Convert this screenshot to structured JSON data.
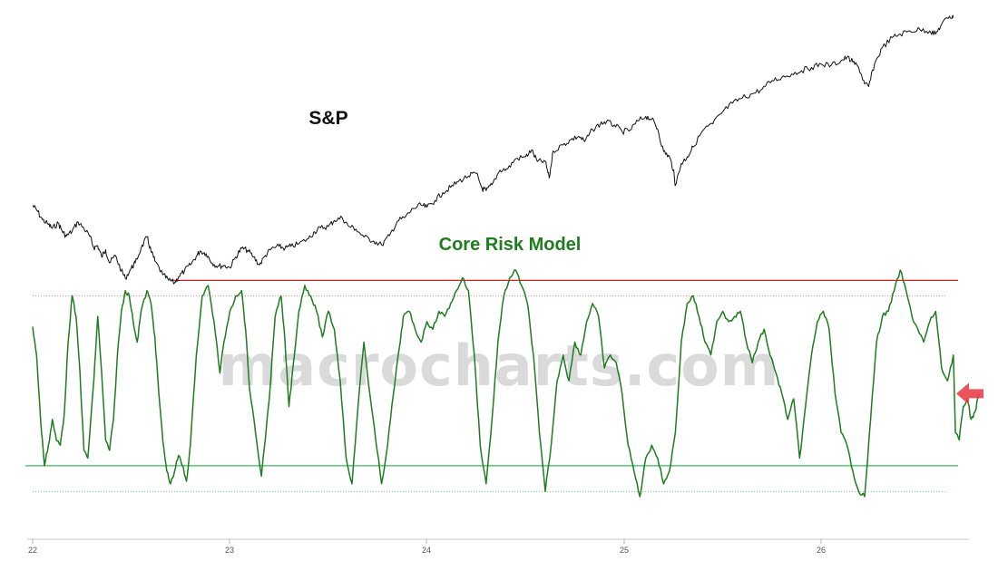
{
  "chart_data": {
    "type": "line",
    "watermark": "macrocharts.com",
    "x_ticks": [
      "22",
      "23",
      "24",
      "25",
      "26"
    ],
    "colors": {
      "sp": "#111111",
      "crm": "#1e7d1e",
      "upper_threshold": "#e02020",
      "upper_threshold_dotted": "#e88a8a",
      "lower_threshold": "#3cb860",
      "lower_threshold_dotted": "#7ccf96",
      "marker": "#e8414a"
    },
    "series": [
      {
        "name": "S&P",
        "key": "sp",
        "points": [
          [
            22.0,
            4766
          ],
          [
            22.02,
            4700
          ],
          [
            22.05,
            4550
          ],
          [
            22.08,
            4480
          ],
          [
            22.1,
            4420
          ],
          [
            22.13,
            4500
          ],
          [
            22.15,
            4380
          ],
          [
            22.17,
            4300
          ],
          [
            22.2,
            4380
          ],
          [
            22.23,
            4520
          ],
          [
            22.26,
            4420
          ],
          [
            22.29,
            4300
          ],
          [
            22.31,
            4130
          ],
          [
            22.33,
            4160
          ],
          [
            22.35,
            3990
          ],
          [
            22.37,
            4100
          ],
          [
            22.39,
            3900
          ],
          [
            22.42,
            4010
          ],
          [
            22.45,
            3780
          ],
          [
            22.47,
            3670
          ],
          [
            22.5,
            3820
          ],
          [
            22.52,
            3900
          ],
          [
            22.55,
            4120
          ],
          [
            22.58,
            4290
          ],
          [
            22.6,
            4080
          ],
          [
            22.62,
            3930
          ],
          [
            22.66,
            3720
          ],
          [
            22.69,
            3640
          ],
          [
            22.72,
            3600
          ],
          [
            22.74,
            3690
          ],
          [
            22.77,
            3780
          ],
          [
            22.8,
            3870
          ],
          [
            22.83,
            4000
          ],
          [
            22.85,
            4080
          ],
          [
            22.88,
            4040
          ],
          [
            22.91,
            3900
          ],
          [
            22.94,
            3850
          ],
          [
            22.97,
            3860
          ],
          [
            23.0,
            3830
          ],
          [
            23.03,
            3990
          ],
          [
            23.06,
            4120
          ],
          [
            23.09,
            4090
          ],
          [
            23.12,
            3990
          ],
          [
            23.15,
            3870
          ],
          [
            23.18,
            4010
          ],
          [
            23.21,
            4110
          ],
          [
            23.25,
            4150
          ],
          [
            23.28,
            4120
          ],
          [
            23.31,
            4150
          ],
          [
            23.35,
            4190
          ],
          [
            23.4,
            4270
          ],
          [
            23.43,
            4370
          ],
          [
            23.46,
            4430
          ],
          [
            23.5,
            4450
          ],
          [
            23.53,
            4540
          ],
          [
            23.57,
            4580
          ],
          [
            23.6,
            4460
          ],
          [
            23.64,
            4410
          ],
          [
            23.68,
            4290
          ],
          [
            23.73,
            4230
          ],
          [
            23.77,
            4170
          ],
          [
            23.81,
            4310
          ],
          [
            23.85,
            4530
          ],
          [
            23.89,
            4590
          ],
          [
            23.93,
            4720
          ],
          [
            23.97,
            4770
          ],
          [
            24.0,
            4740
          ],
          [
            24.04,
            4840
          ],
          [
            24.08,
            4960
          ],
          [
            24.12,
            5040
          ],
          [
            24.16,
            5130
          ],
          [
            24.21,
            5210
          ],
          [
            24.25,
            5250
          ],
          [
            24.28,
            5020
          ],
          [
            24.3,
            4990
          ],
          [
            24.33,
            5080
          ],
          [
            24.37,
            5300
          ],
          [
            24.41,
            5320
          ],
          [
            24.45,
            5470
          ],
          [
            24.5,
            5500
          ],
          [
            24.53,
            5600
          ],
          [
            24.56,
            5430
          ],
          [
            24.6,
            5430
          ],
          [
            24.62,
            5180
          ],
          [
            24.64,
            5590
          ],
          [
            24.69,
            5680
          ],
          [
            24.73,
            5760
          ],
          [
            24.77,
            5810
          ],
          [
            24.8,
            5730
          ],
          [
            24.84,
            5910
          ],
          [
            24.88,
            6000
          ],
          [
            24.91,
            6030
          ],
          [
            24.95,
            5980
          ],
          [
            24.99,
            5880
          ],
          [
            25.03,
            5900
          ],
          [
            25.07,
            6040
          ],
          [
            25.11,
            6110
          ],
          [
            25.14,
            6070
          ],
          [
            25.17,
            5920
          ],
          [
            25.2,
            5580
          ],
          [
            25.23,
            5500
          ],
          [
            25.25,
            5300
          ],
          [
            25.26,
            5070
          ],
          [
            25.29,
            5400
          ],
          [
            25.32,
            5500
          ],
          [
            25.35,
            5650
          ],
          [
            25.4,
            5900
          ],
          [
            25.45,
            6000
          ],
          [
            25.5,
            6180
          ],
          [
            25.55,
            6310
          ],
          [
            25.6,
            6390
          ],
          [
            25.65,
            6450
          ],
          [
            25.7,
            6520
          ],
          [
            25.75,
            6650
          ],
          [
            25.8,
            6700
          ],
          [
            25.85,
            6750
          ],
          [
            25.9,
            6800
          ],
          [
            25.95,
            6850
          ],
          [
            26.0,
            6900
          ],
          [
            26.05,
            6880
          ],
          [
            26.1,
            6950
          ],
          [
            26.13,
            7000
          ],
          [
            26.16,
            6930
          ],
          [
            26.19,
            6850
          ],
          [
            26.22,
            6600
          ],
          [
            26.24,
            6560
          ],
          [
            26.27,
            6900
          ],
          [
            26.31,
            7150
          ],
          [
            26.36,
            7300
          ],
          [
            26.4,
            7350
          ],
          [
            26.45,
            7400
          ],
          [
            26.5,
            7420
          ],
          [
            26.55,
            7400
          ],
          [
            26.58,
            7350
          ],
          [
            26.61,
            7500
          ],
          [
            26.65,
            7620
          ],
          [
            26.67,
            7600
          ]
        ]
      },
      {
        "name": "Core Risk Model",
        "key": "crm",
        "points": [
          [
            22.0,
            66
          ],
          [
            22.02,
            55
          ],
          [
            22.04,
            30
          ],
          [
            22.06,
            12
          ],
          [
            22.08,
            20
          ],
          [
            22.1,
            30
          ],
          [
            22.12,
            22
          ],
          [
            22.14,
            20
          ],
          [
            22.16,
            32
          ],
          [
            22.18,
            60
          ],
          [
            22.2,
            78
          ],
          [
            22.22,
            70
          ],
          [
            22.24,
            48
          ],
          [
            22.26,
            18
          ],
          [
            22.28,
            15
          ],
          [
            22.31,
            45
          ],
          [
            22.33,
            70
          ],
          [
            22.35,
            48
          ],
          [
            22.37,
            22
          ],
          [
            22.39,
            18
          ],
          [
            22.41,
            30
          ],
          [
            22.43,
            55
          ],
          [
            22.45,
            72
          ],
          [
            22.47,
            80
          ],
          [
            22.49,
            78
          ],
          [
            22.51,
            68
          ],
          [
            22.53,
            60
          ],
          [
            22.55,
            72
          ],
          [
            22.58,
            80
          ],
          [
            22.6,
            75
          ],
          [
            22.62,
            62
          ],
          [
            22.64,
            40
          ],
          [
            22.66,
            22
          ],
          [
            22.68,
            10
          ],
          [
            22.7,
            5
          ],
          [
            22.72,
            10
          ],
          [
            22.74,
            16
          ],
          [
            22.76,
            12
          ],
          [
            22.78,
            6
          ],
          [
            22.8,
            20
          ],
          [
            22.83,
            55
          ],
          [
            22.86,
            78
          ],
          [
            22.89,
            82
          ],
          [
            22.92,
            68
          ],
          [
            22.95,
            48
          ],
          [
            22.97,
            60
          ],
          [
            23.0,
            72
          ],
          [
            23.03,
            78
          ],
          [
            23.06,
            80
          ],
          [
            23.08,
            65
          ],
          [
            23.1,
            42
          ],
          [
            23.13,
            25
          ],
          [
            23.16,
            8
          ],
          [
            23.2,
            38
          ],
          [
            23.23,
            70
          ],
          [
            23.26,
            78
          ],
          [
            23.28,
            60
          ],
          [
            23.3,
            35
          ],
          [
            23.32,
            50
          ],
          [
            23.35,
            72
          ],
          [
            23.38,
            82
          ],
          [
            23.41,
            78
          ],
          [
            23.44,
            72
          ],
          [
            23.47,
            62
          ],
          [
            23.5,
            72
          ],
          [
            23.53,
            65
          ],
          [
            23.56,
            45
          ],
          [
            23.59,
            15
          ],
          [
            23.62,
            5
          ],
          [
            23.65,
            35
          ],
          [
            23.68,
            60
          ],
          [
            23.71,
            40
          ],
          [
            23.74,
            22
          ],
          [
            23.77,
            5
          ],
          [
            23.8,
            20
          ],
          [
            23.83,
            40
          ],
          [
            23.86,
            58
          ],
          [
            23.88,
            70
          ],
          [
            23.91,
            72
          ],
          [
            23.94,
            65
          ],
          [
            23.97,
            60
          ],
          [
            24.0,
            68
          ],
          [
            24.03,
            65
          ],
          [
            24.06,
            72
          ],
          [
            24.09,
            70
          ],
          [
            24.12,
            75
          ],
          [
            24.15,
            80
          ],
          [
            24.18,
            85
          ],
          [
            24.21,
            80
          ],
          [
            24.24,
            55
          ],
          [
            24.27,
            20
          ],
          [
            24.3,
            5
          ],
          [
            24.33,
            30
          ],
          [
            24.36,
            60
          ],
          [
            24.39,
            78
          ],
          [
            24.42,
            85
          ],
          [
            24.45,
            88
          ],
          [
            24.48,
            82
          ],
          [
            24.51,
            75
          ],
          [
            24.54,
            55
          ],
          [
            24.57,
            25
          ],
          [
            24.6,
            2
          ],
          [
            24.63,
            20
          ],
          [
            24.66,
            45
          ],
          [
            24.69,
            55
          ],
          [
            24.72,
            45
          ],
          [
            24.75,
            60
          ],
          [
            24.78,
            55
          ],
          [
            24.81,
            68
          ],
          [
            24.84,
            75
          ],
          [
            24.87,
            70
          ],
          [
            24.9,
            50
          ],
          [
            24.93,
            55
          ],
          [
            24.96,
            52
          ],
          [
            24.99,
            40
          ],
          [
            25.02,
            20
          ],
          [
            25.05,
            10
          ],
          [
            25.08,
            0
          ],
          [
            25.11,
            15
          ],
          [
            25.14,
            20
          ],
          [
            25.17,
            15
          ],
          [
            25.2,
            5
          ],
          [
            25.23,
            10
          ],
          [
            25.26,
            25
          ],
          [
            25.29,
            60
          ],
          [
            25.32,
            75
          ],
          [
            25.35,
            78
          ],
          [
            25.38,
            70
          ],
          [
            25.41,
            60
          ],
          [
            25.44,
            55
          ],
          [
            25.47,
            68
          ],
          [
            25.5,
            72
          ],
          [
            25.53,
            68
          ],
          [
            25.56,
            70
          ],
          [
            25.59,
            72
          ],
          [
            25.62,
            60
          ],
          [
            25.65,
            52
          ],
          [
            25.68,
            60
          ],
          [
            25.71,
            65
          ],
          [
            25.74,
            55
          ],
          [
            25.77,
            48
          ],
          [
            25.8,
            40
          ],
          [
            25.83,
            30
          ],
          [
            25.86,
            38
          ],
          [
            25.89,
            15
          ],
          [
            25.92,
            35
          ],
          [
            25.95,
            55
          ],
          [
            25.98,
            68
          ],
          [
            26.01,
            72
          ],
          [
            26.04,
            65
          ],
          [
            26.07,
            40
          ],
          [
            26.1,
            25
          ],
          [
            26.13,
            20
          ],
          [
            26.16,
            10
          ],
          [
            26.19,
            2
          ],
          [
            26.22,
            0
          ],
          [
            26.25,
            30
          ],
          [
            26.28,
            60
          ],
          [
            26.31,
            70
          ],
          [
            26.34,
            72
          ],
          [
            26.37,
            80
          ],
          [
            26.4,
            88
          ],
          [
            26.43,
            80
          ],
          [
            26.46,
            70
          ],
          [
            26.49,
            65
          ],
          [
            26.52,
            60
          ],
          [
            26.55,
            68
          ],
          [
            26.58,
            72
          ],
          [
            26.61,
            50
          ],
          [
            26.64,
            45
          ],
          [
            26.67,
            55
          ],
          [
            26.68,
            25
          ],
          [
            26.7,
            22
          ],
          [
            26.72,
            35
          ],
          [
            26.74,
            38
          ],
          [
            26.76,
            30
          ],
          [
            26.78,
            33
          ],
          [
            26.8,
            40
          ]
        ]
      }
    ],
    "upper_threshold": 84,
    "upper_threshold_dotted": 78,
    "lower_threshold": 12,
    "lower_threshold_dotted": 2
  }
}
